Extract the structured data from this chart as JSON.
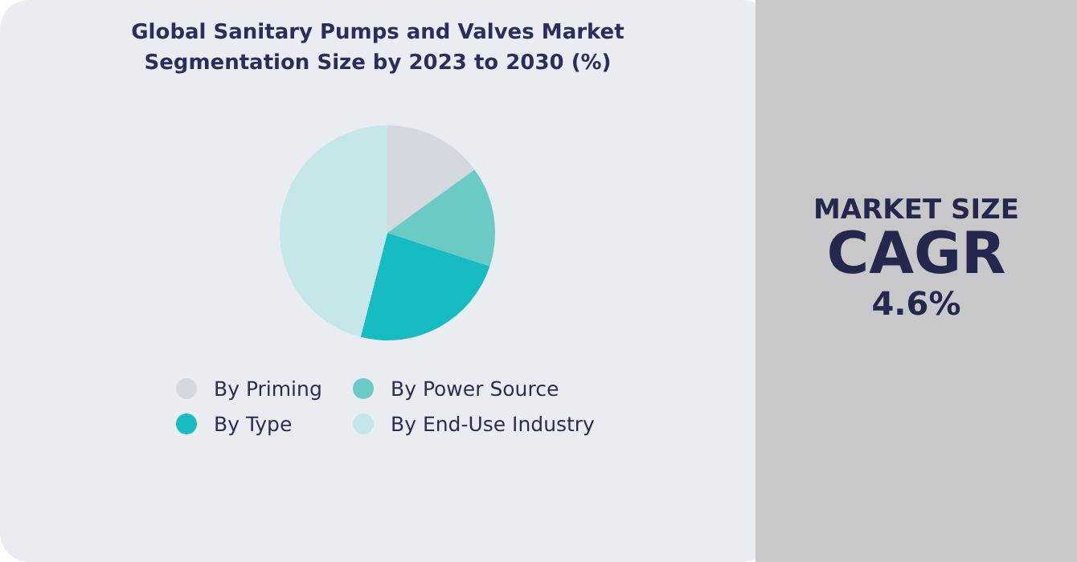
{
  "chart_data": {
    "type": "pie",
    "title": "Global Sanitary Pumps and Valves Market Segmentation Size by 2023 to 2030 (%)",
    "categories": [
      "By Priming",
      "By Power Source",
      "By Type",
      "By End-Use Industry"
    ],
    "values": [
      15,
      15,
      24,
      46
    ],
    "colors": [
      "#d3d9df",
      "#6ccac4",
      "#17bcc2",
      "#c5e7ea"
    ],
    "legend": "bottom",
    "annotations": [
      "MARKET SIZE",
      "CAGR",
      "4.6%"
    ]
  }
}
